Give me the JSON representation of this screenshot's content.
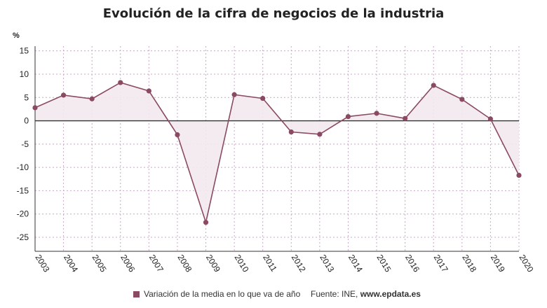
{
  "chart_data": {
    "type": "line",
    "title": "Evolución de la cifra de negocios de la industria",
    "ylabel": "%",
    "xlabel": "",
    "categories": [
      "2003",
      "2004",
      "2005",
      "2006",
      "2007",
      "2008",
      "2009",
      "2010",
      "2011",
      "2012",
      "2013",
      "2014",
      "2015",
      "2016",
      "2017",
      "2018",
      "2019",
      "2020"
    ],
    "series": [
      {
        "name": "Variación de la media en lo que va de año",
        "values": [
          2.8,
          5.5,
          4.7,
          8.2,
          6.4,
          -3.0,
          -21.8,
          5.6,
          4.8,
          -2.4,
          -2.9,
          0.9,
          1.6,
          0.5,
          7.6,
          4.6,
          0.4,
          -11.7
        ]
      }
    ],
    "ylim": [
      -28,
      16
    ],
    "yticks": [
      15,
      10,
      5,
      0,
      -5,
      -10,
      -15,
      -20,
      -25
    ],
    "grid": true,
    "legend": "bottom",
    "colors": {
      "line": "#8a4a62",
      "fill": "#f3e9ee",
      "grid": "#c8a8c8",
      "zero": "#333333"
    }
  },
  "source_label": "Fuente: INE, ",
  "source_site": "www.epdata.es"
}
